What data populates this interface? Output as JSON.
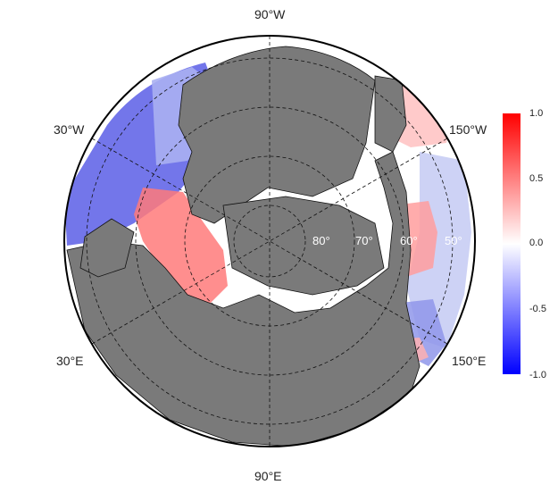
{
  "map": {
    "lon_labels": {
      "top": "90°W",
      "bottom": "90°E",
      "upper_left": "30°W",
      "upper_right": "150°W",
      "lower_left": "30°E",
      "lower_right": "150°E"
    },
    "lat_labels": [
      "80°",
      "70°",
      "60°",
      "50°"
    ],
    "land_color": "#7a7a7a",
    "ocean_no_data_color": "#ffffff",
    "grid_style": "dashed"
  },
  "colorbar": {
    "ticks": [
      "1.0",
      "0.5",
      "0.0",
      "-0.5",
      "-1.0"
    ],
    "min": -1.0,
    "max": 1.0,
    "colors": {
      "high": "#ff0000",
      "mid": "#ffffff",
      "low": "#0000ff"
    }
  }
}
